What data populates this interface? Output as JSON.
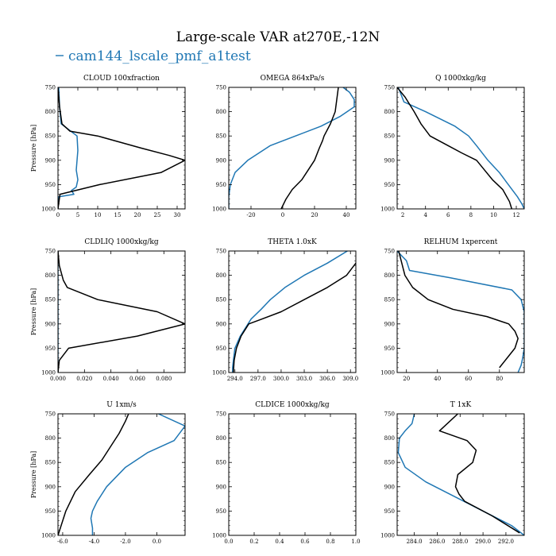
{
  "figure": {
    "title": "Large-scale VAR at270E,-12N",
    "legend_label": "cam144_lscale_pmf_a1test",
    "legend_color": "#1f77b4",
    "control_color": "#000000"
  },
  "chart_data": [
    {
      "type": "line",
      "title": "CLOUD  100xfraction",
      "ylabel": "Pressure [hPa]",
      "xlim": [
        0,
        32
      ],
      "ylim": [
        1000,
        750
      ],
      "xticks": [
        0,
        5,
        10,
        15,
        20,
        25,
        30
      ],
      "yticks": [
        750,
        800,
        850,
        900,
        950,
        1000
      ],
      "xtick_fmt": 0,
      "series": [
        {
          "name": "cam144_lscale_pmf_a1test",
          "x": [
            0.2,
            0.4,
            0.8,
            4.8,
            5,
            4.8,
            4.6,
            5,
            4.6,
            3.4,
            4,
            0.2,
            0
          ],
          "y": [
            750,
            790,
            825,
            850,
            880,
            900,
            920,
            940,
            955,
            962,
            970,
            975,
            1000
          ]
        },
        {
          "x": [
            0,
            0.4,
            1,
            3,
            10,
            21,
            28,
            32,
            26,
            10.5,
            0.5,
            0
          ],
          "y": [
            750,
            790,
            825,
            840,
            850,
            875,
            890,
            900,
            925,
            950,
            970,
            1000
          ]
        }
      ]
    },
    {
      "type": "line",
      "title": "OMEGA  864xPa/s",
      "ylabel": "",
      "xlim": [
        -34,
        46
      ],
      "ylim": [
        1000,
        750
      ],
      "xticks": [
        -20,
        0,
        20,
        40
      ],
      "yticks": [
        750,
        800,
        850,
        900,
        950,
        1000
      ],
      "xtick_fmt": 0,
      "series": [
        {
          "name": "cam144_lscale_pmf_a1test",
          "x": [
            38,
            42,
            45,
            45,
            36,
            24,
            8,
            -8,
            -22,
            -30,
            -33,
            -34,
            -34
          ],
          "y": [
            750,
            760,
            775,
            790,
            810,
            830,
            850,
            870,
            900,
            925,
            950,
            975,
            1000
          ]
        },
        {
          "x": [
            35,
            34,
            33,
            30,
            26,
            25,
            23,
            20,
            16,
            12,
            6,
            2,
            -1
          ],
          "y": [
            750,
            775,
            800,
            825,
            850,
            860,
            875,
            900,
            920,
            940,
            960,
            980,
            1000
          ]
        }
      ]
    },
    {
      "type": "line",
      "title": "Q  1000xkg/kg",
      "ylabel": "",
      "xlim": [
        1.5,
        12.7
      ],
      "ylim": [
        1000,
        750
      ],
      "xticks": [
        2,
        4,
        6,
        8,
        10,
        12
      ],
      "yticks": [
        750,
        800,
        850,
        900,
        950,
        1000
      ],
      "xtick_fmt": 0,
      "series": [
        {
          "name": "cam144_lscale_pmf_a1test",
          "x": [
            1.6,
            2.1,
            4,
            6.6,
            7.8,
            8.5,
            9.5,
            10.5,
            11.3,
            12.1,
            12.5,
            12.7
          ],
          "y": [
            750,
            780,
            800,
            830,
            850,
            870,
            900,
            925,
            950,
            975,
            990,
            1000
          ]
        },
        {
          "x": [
            1.5,
            2.2,
            3,
            3.6,
            4.4,
            6,
            7.2,
            8.5,
            9.2,
            9.9,
            10.8,
            11.4,
            11.6
          ],
          "y": [
            750,
            770,
            800,
            825,
            850,
            870,
            885,
            900,
            920,
            940,
            960,
            985,
            1000
          ]
        }
      ]
    },
    {
      "type": "line",
      "title": "CLDLIQ  1000xkg/kg",
      "ylabel": "Pressure [hPa]",
      "xlim": [
        0,
        0.096
      ],
      "ylim": [
        1000,
        750
      ],
      "xticks": [
        0,
        0.02,
        0.04,
        0.06,
        0.08
      ],
      "yticks": [
        750,
        800,
        850,
        900,
        950,
        1000
      ],
      "xtick_fmt": 3,
      "series": [
        {
          "name": "cam144_lscale_pmf_a1test",
          "x": [
            0,
            0,
            0
          ],
          "y": [
            750,
            900,
            1000
          ]
        },
        {
          "x": [
            0,
            0.001,
            0.004,
            0.007,
            0.03,
            0.075,
            0.096,
            0.06,
            0.008,
            0.001,
            0
          ],
          "y": [
            750,
            780,
            810,
            825,
            850,
            875,
            900,
            925,
            950,
            975,
            1000
          ]
        }
      ]
    },
    {
      "type": "line",
      "title": "THETA  1.0xK",
      "ylabel": "",
      "xlim": [
        293.2,
        309.7
      ],
      "ylim": [
        1000,
        750
      ],
      "xticks": [
        294,
        297,
        300,
        303,
        306,
        309
      ],
      "yticks": [
        750,
        800,
        850,
        900,
        950,
        1000
      ],
      "xtick_fmt": 1,
      "series": [
        {
          "name": "cam144_lscale_pmf_a1test",
          "x": [
            308.6,
            306,
            303,
            300.5,
            298.6,
            297.4,
            296.1,
            294.7,
            294,
            293.8,
            293.7,
            293.7
          ],
          "y": [
            750,
            775,
            800,
            825,
            850,
            870,
            890,
            925,
            950,
            975,
            990,
            1000
          ]
        },
        {
          "x": [
            309.7,
            308.5,
            306,
            303,
            300,
            297.5,
            295.8,
            294.8,
            294.2,
            293.9,
            293.8
          ],
          "y": [
            775,
            800,
            825,
            850,
            875,
            890,
            900,
            925,
            950,
            975,
            1000
          ]
        }
      ]
    },
    {
      "type": "line",
      "title": "RELHUM  1xpercent",
      "ylabel": "",
      "xlim": [
        14,
        96
      ],
      "ylim": [
        1000,
        750
      ],
      "xticks": [
        20,
        40,
        60,
        80
      ],
      "yticks": [
        750,
        800,
        850,
        900,
        950,
        1000
      ],
      "xtick_fmt": 0,
      "series": [
        {
          "name": "cam144_lscale_pmf_a1test",
          "x": [
            14,
            20,
            22,
            48,
            88,
            94,
            96,
            96,
            96,
            96,
            95,
            94,
            92
          ],
          "y": [
            750,
            770,
            790,
            805,
            830,
            850,
            875,
            900,
            925,
            950,
            970,
            985,
            1000
          ]
        },
        {
          "x": [
            15,
            17,
            19,
            24,
            34,
            50,
            72,
            86,
            90,
            92,
            90,
            85,
            80
          ],
          "y": [
            750,
            775,
            800,
            825,
            850,
            870,
            885,
            900,
            915,
            930,
            950,
            970,
            990
          ]
        }
      ]
    },
    {
      "type": "line",
      "title": "U  1xm/s",
      "ylabel": "Pressure [hPa]",
      "xlim": [
        -6.3,
        1.8
      ],
      "ylim": [
        1000,
        750
      ],
      "xticks": [
        -6,
        -4,
        -2,
        0
      ],
      "yticks": [
        750,
        800,
        850,
        900,
        950,
        1000
      ],
      "xtick_fmt": 1,
      "series": [
        {
          "name": "cam144_lscale_pmf_a1test",
          "x": [
            0.1,
            1.8,
            1.1,
            -0.6,
            -2,
            -3.2,
            -3.8,
            -4.1,
            -4.2,
            -4.1,
            -4.1
          ],
          "y": [
            750,
            775,
            805,
            830,
            860,
            900,
            930,
            950,
            965,
            985,
            1000
          ]
        },
        {
          "x": [
            -1.8,
            -2,
            -2.4,
            -2.9,
            -3.5,
            -4.3,
            -5.2,
            -5.8,
            -6,
            -6.2,
            -6.3
          ],
          "y": [
            750,
            765,
            790,
            815,
            845,
            875,
            910,
            950,
            970,
            990,
            1000
          ]
        }
      ]
    },
    {
      "type": "line",
      "title": "CLDICE  1000xkg/kg",
      "ylabel": "",
      "xlim": [
        0,
        1
      ],
      "ylim": [
        1000,
        750
      ],
      "xticks": [
        0,
        0.2,
        0.4,
        0.6,
        0.8,
        1.0
      ],
      "yticks": [
        750,
        800,
        850,
        900,
        950,
        1000
      ],
      "xtick_fmt": 1,
      "series": []
    },
    {
      "type": "line",
      "title": "T  1xK",
      "ylabel": "",
      "xlim": [
        282.5,
        293.6
      ],
      "ylim": [
        1000,
        750
      ],
      "xticks": [
        284,
        286,
        288,
        290,
        292
      ],
      "yticks": [
        750,
        800,
        850,
        900,
        950,
        1000
      ],
      "xtick_fmt": 1,
      "series": [
        {
          "name": "cam144_lscale_pmf_a1test",
          "x": [
            284,
            283.8,
            283.2,
            282.7,
            282.6,
            283.2,
            285,
            287.5,
            290,
            292.5,
            293.6
          ],
          "y": [
            750,
            770,
            785,
            800,
            830,
            860,
            890,
            920,
            950,
            980,
            1000
          ]
        },
        {
          "x": [
            287.8,
            286.2,
            288.6,
            289.4,
            289.1,
            287.8,
            287.6,
            287.9,
            288.4,
            290.8,
            293.2
          ],
          "y": [
            750,
            785,
            805,
            825,
            850,
            875,
            900,
            915,
            930,
            960,
            995
          ]
        }
      ]
    }
  ]
}
